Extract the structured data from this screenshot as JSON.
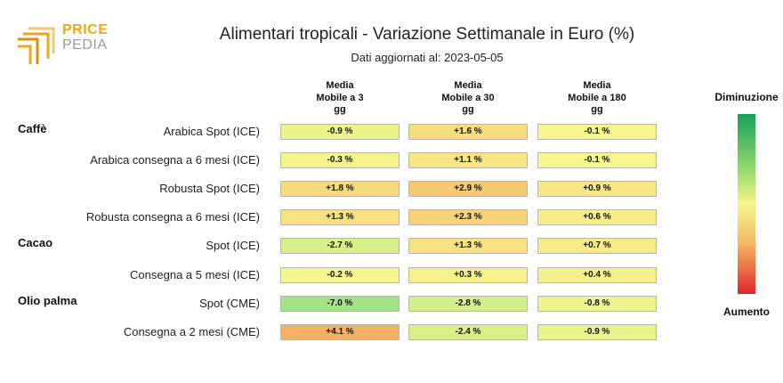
{
  "logo": {
    "line1": "PRICE",
    "line2": "PEDIA"
  },
  "colors": {
    "logo_orange": "#f2a516",
    "logo_gray": "#9a9a9a",
    "scale_green": "#18a05a",
    "scale_yellow": "#f6f68a",
    "scale_red": "#e0242c"
  },
  "chart_data": {
    "type": "table",
    "title": "Alimentari tropicali - Variazione Settimanale in Euro (%)",
    "subtitle": "Dati aggiornati al: 2023-05-05",
    "columns": [
      "Media Mobile a 3 gg",
      "Media Mobile a 30 gg",
      "Media Mobile a 180 gg"
    ],
    "column_lines": [
      [
        "Media",
        "Mobile a 3",
        "gg"
      ],
      [
        "Media",
        "Mobile a 30",
        "gg"
      ],
      [
        "Media",
        "Mobile a 180",
        "gg"
      ]
    ],
    "unit": "%",
    "rows": [
      {
        "group": "Caffè",
        "label": "Arabica Spot (ICE)",
        "values": [
          -0.9,
          1.6,
          -0.1
        ],
        "display": [
          "-0.9 %",
          "+1.6 %",
          "-0.1 %"
        ]
      },
      {
        "group": "",
        "label": "Arabica consegna a 6 mesi (ICE)",
        "values": [
          -0.3,
          1.1,
          -0.1
        ],
        "display": [
          "-0.3 %",
          "+1.1 %",
          "-0.1 %"
        ]
      },
      {
        "group": "",
        "label": "Robusta Spot (ICE)",
        "values": [
          1.8,
          2.9,
          0.9
        ],
        "display": [
          "+1.8 %",
          "+2.9 %",
          "+0.9 %"
        ]
      },
      {
        "group": "",
        "label": "Robusta consegna a 6 mesi (ICE)",
        "values": [
          1.3,
          2.3,
          0.6
        ],
        "display": [
          "+1.3 %",
          "+2.3 %",
          "+0.6 %"
        ]
      },
      {
        "group": "Cacao",
        "label": "Spot (ICE)",
        "values": [
          -2.7,
          1.3,
          0.7
        ],
        "display": [
          "-2.7 %",
          "+1.3 %",
          "+0.7 %"
        ]
      },
      {
        "group": "",
        "label": "Consegna a 5 mesi (ICE)",
        "values": [
          -0.2,
          0.3,
          0.4
        ],
        "display": [
          "-0.2 %",
          "+0.3 %",
          "+0.4 %"
        ]
      },
      {
        "group": "Olio palma",
        "label": "Spot (CME)",
        "values": [
          -7.0,
          -2.8,
          -0.8
        ],
        "display": [
          "-7.0 %",
          "-2.8 %",
          "-0.8 %"
        ]
      },
      {
        "group": "",
        "label": "Consegna a 2 mesi (CME)",
        "values": [
          4.1,
          -2.4,
          -0.9
        ],
        "display": [
          "+4.1 %",
          "-2.4 %",
          "-0.9 %"
        ]
      }
    ],
    "legend": {
      "top": "Diminuzione",
      "bottom": "Aumento"
    }
  }
}
